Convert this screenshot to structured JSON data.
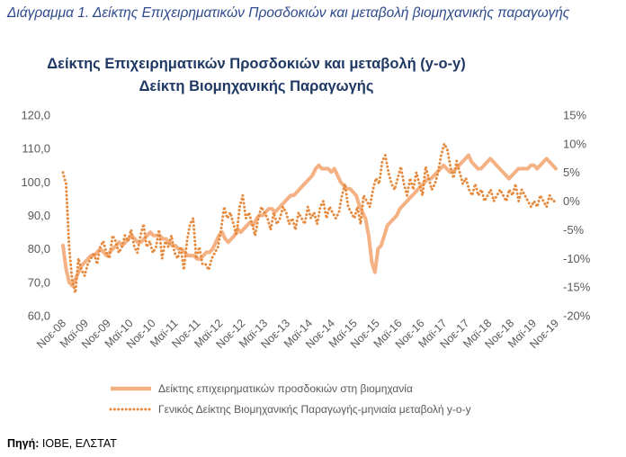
{
  "caption": "Διάγραμμα 1. Δείκτης Επιχειρηματικών Προσδοκιών και μεταβολή βιομηχανικής παραγωγής",
  "source_label": "Πηγή:",
  "source_value": "ΙΟΒΕ, ΕΛΣΤΑΤ",
  "colors": {
    "title": "#1f3864",
    "line": "#f4b183",
    "dots": "#e58a3e",
    "axis": "#595959",
    "caption": "#2e4a8c"
  },
  "chart_data": {
    "type": "line",
    "title_lines": [
      "Δείκτης Επιχειρηματικών Προσδοκιών και μεταβολή (y-o-y)",
      "Δείκτη Βιομηχανικής Παραγωγής"
    ],
    "left_axis": {
      "min": 60,
      "max": 120,
      "ticks": [
        "60,0",
        "70,0",
        "80,0",
        "90,0",
        "100,0",
        "110,0",
        "120,0"
      ]
    },
    "right_axis": {
      "min": -20,
      "max": 15,
      "ticks": [
        "-20%",
        "-15%",
        "-10%",
        "-5%",
        "0%",
        "5%",
        "10%",
        "15%"
      ]
    },
    "x_tick_labels": [
      "Νοε-08",
      "Μαϊ-09",
      "Νοε-09",
      "Μαϊ-10",
      "Νοε-10",
      "Μαϊ-11",
      "Νοε-11",
      "Μαϊ-12",
      "Νοε-12",
      "Μαϊ-13",
      "Νοε-13",
      "Μαϊ-14",
      "Νοε-14",
      "Μαϊ-15",
      "Νοε-15",
      "Μαϊ-16",
      "Νοε-16",
      "Μαϊ-17",
      "Νοε-17",
      "Μαϊ-18",
      "Νοε-18",
      "Μαϊ-19",
      "Νοε-19"
    ],
    "series": [
      {
        "name": "Δείκτης επιχειρηματικών προσδοκιών στη βιομηχανία",
        "axis": "left",
        "style": "solid",
        "values": [
          81.0,
          74.0,
          70.0,
          69.0,
          71.0,
          73.0,
          75.0,
          76.0,
          77.0,
          78.0,
          78.0,
          79.0,
          80.0,
          79.0,
          78.0,
          79.0,
          80.0,
          81.0,
          82.0,
          81.0,
          82.0,
          83.0,
          84.0,
          83.0,
          82.0,
          82.0,
          83.0,
          84.0,
          85.0,
          84.0,
          84.0,
          84.0,
          83.0,
          83.0,
          82.0,
          81.0,
          81.0,
          80.0,
          80.0,
          79.0,
          78.0,
          78.0,
          78.0,
          77.0,
          77.0,
          78.0,
          79.0,
          79.0,
          80.0,
          82.0,
          84.0,
          85.0,
          83.0,
          82.0,
          83.0,
          84.0,
          86.0,
          85.0,
          86.0,
          87.0,
          88.0,
          87.0,
          89.0,
          90.0,
          90.0,
          91.0,
          92.0,
          92.0,
          91.0,
          92.0,
          93.0,
          94.0,
          95.0,
          96.0,
          96.0,
          97.0,
          98.0,
          99.0,
          100.0,
          101.0,
          102.0,
          104.0,
          105.0,
          104.0,
          104.0,
          104.0,
          103.0,
          104.0,
          102.0,
          100.0,
          99.0,
          98.0,
          98.0,
          97.0,
          96.0,
          93.0,
          91.0,
          89.0,
          84.0,
          76.0,
          73.0,
          80.0,
          81.0,
          84.0,
          87.0,
          88.0,
          89.0,
          90.0,
          92.0,
          93.0,
          94.0,
          95.0,
          96.0,
          97.0,
          98.0,
          99.0,
          100.0,
          101.0,
          101.0,
          102.0,
          103.0,
          104.0,
          105.0,
          104.0,
          103.0,
          103.0,
          104.0,
          105.0,
          106.0,
          107.0,
          108.0,
          106.0,
          105.0,
          104.0,
          104.0,
          105.0,
          106.0,
          107.0,
          106.0,
          105.0,
          104.0,
          103.0,
          102.0,
          101.0,
          102.0,
          103.0,
          104.0,
          104.0,
          104.0,
          104.0,
          105.0,
          105.0,
          104.0,
          105.0,
          106.0,
          107.0,
          106.0,
          105.0,
          104.0
        ]
      },
      {
        "name": "Γενικός Δείκτης Βιομηχανικής Παραγωγής-μηνιαία μεταβολή y-o-y",
        "axis": "right",
        "style": "dotted",
        "values": [
          5.0,
          3.0,
          -8.0,
          -14.0,
          -16.0,
          -10.0,
          -12.0,
          -13.0,
          -11.0,
          -10.0,
          -9.0,
          -11.0,
          -8.0,
          -7.0,
          -9.0,
          -10.0,
          -6.0,
          -7.0,
          -9.0,
          -8.0,
          -6.0,
          -7.0,
          -5.0,
          -8.0,
          -9.0,
          -6.0,
          -4.0,
          -8.0,
          -7.0,
          -9.0,
          -8.0,
          -5.0,
          -10.0,
          -7.0,
          -8.0,
          -6.0,
          -9.0,
          -10.0,
          -8.0,
          -12.0,
          -7.0,
          -4.0,
          -3.0,
          -10.0,
          -8.0,
          -11.0,
          -11.0,
          -12.0,
          -10.0,
          -9.0,
          -8.0,
          -5.0,
          -1.0,
          -3.0,
          -2.0,
          -4.0,
          -6.0,
          -1.0,
          1.0,
          -3.0,
          -2.0,
          -4.0,
          -6.0,
          -3.0,
          -1.0,
          -2.0,
          -3.0,
          -5.0,
          -2.0,
          -4.0,
          -3.0,
          -1.0,
          -2.0,
          -4.0,
          -3.0,
          -5.0,
          -2.0,
          -3.0,
          -4.0,
          -1.0,
          -3.0,
          -2.0,
          -4.0,
          -1.0,
          0.0,
          -3.0,
          -1.0,
          -2.0,
          -3.0,
          -2.0,
          1.0,
          3.0,
          -1.0,
          -2.0,
          -3.0,
          -1.0,
          -4.0,
          1.0,
          0.0,
          -1.0,
          2.0,
          4.0,
          3.0,
          7.0,
          8.0,
          5.0,
          3.0,
          2.0,
          4.0,
          6.0,
          3.0,
          1.0,
          4.0,
          2.0,
          5.0,
          3.0,
          1.0,
          6.0,
          4.0,
          2.0,
          3.0,
          5.0,
          8.0,
          10.0,
          9.0,
          6.0,
          4.0,
          7.0,
          5.0,
          3.0,
          4.0,
          2.0,
          1.0,
          3.0,
          1.0,
          2.0,
          0.0,
          1.0,
          2.0,
          0.0,
          1.0,
          2.0,
          1.0,
          0.0,
          2.0,
          1.0,
          3.0,
          0.0,
          2.0,
          1.0,
          0.0,
          -1.0,
          0.0,
          -1.0,
          1.0,
          0.0,
          -1.0,
          1.0,
          0.0,
          0.0
        ]
      }
    ]
  }
}
